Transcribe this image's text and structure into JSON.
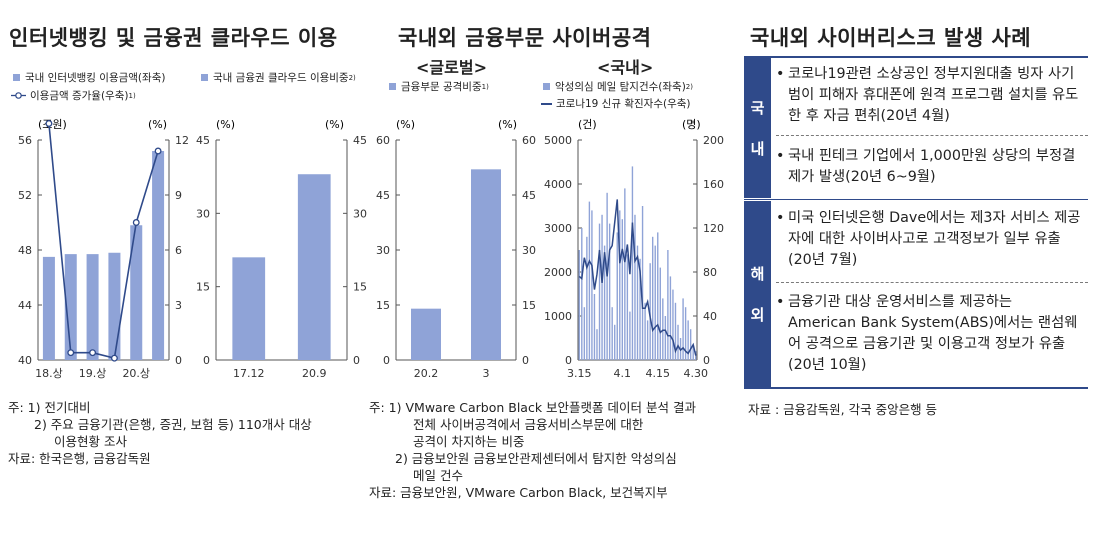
{
  "panels": {
    "left": {
      "title": "인터넷뱅킹 및 금융권 클라우드 이용",
      "legend": [
        "국내 인터넷뱅킹 이용금액(좌축)",
        "이용금액 증가율(우축)",
        "국내 금융권 클라우드 이용비중",
        "2)",
        "1)"
      ],
      "units": {
        "left": "(조원)",
        "right": "(%)"
      },
      "notes": [
        "주:  1) 전기대비",
        "2) 주요 금융기관(은행, 증권, 보험 등) 110개사 대상",
        "이용현황 조사",
        "자료:  한국은행, 금융감독원"
      ]
    },
    "middle": {
      "title": "국내외 금융부문 사이버공격",
      "sub_global": "<글로벌>",
      "sub_domestic": "<국내>",
      "legend": [
        "금융부문 공격비중",
        "악성의심 메일 탐지건수(좌축)",
        "코로나19 신규 확진자수(우축)",
        "1)",
        "2)"
      ],
      "units": {
        "pct": "(%)",
        "count": "(건)",
        "person": "(명)"
      },
      "notes": [
        "주:  1) VMware Carbon Black 보안플랫폼 데이터 분석 결과",
        "전체 사이버공격에서 금융서비스부문에 대한",
        "공격이 차지하는 비중",
        "2) 금융보안원 금융보안관제센터에서 탐지한 악성의심",
        "메일 건수",
        "자료:  금융보안원, VMware Carbon Black, 보건복지부"
      ]
    },
    "right": {
      "title": "국내외 사이버리스크 발생 사례",
      "categories": [
        {
          "label": [
            "국",
            "내"
          ],
          "items": [
            "코로나19관련 소상공인 정부지원대출 빙자 사기범이 피해자 휴대폰에 원격 프로그램 설치를 유도한 후 자금 편취(20년 4월)",
            "국내 핀테크 기업에서 1,000만원 상당의 부정결제가 발생(20년 6~9월)"
          ]
        },
        {
          "label": [
            "해",
            "외"
          ],
          "items": [
            "미국 인터넷은행 Dave에서는 제3자 서비스 제공자에 대한 사이버사고로 고객정보가 일부 유출(20년 7월)",
            "금융기관 대상 운영서비스를 제공하는 American Bank System(ABS)에서는 랜섬웨어 공격으로 금융기관 및 이용고객 정보가 유출(20년 10월)"
          ]
        }
      ],
      "bullet": "•",
      "source": "자료 :  금융감독원, 각국 중앙은행 등"
    }
  },
  "colors": {
    "bar": "#8fa3d7",
    "line": "#2f4a8a",
    "accent": "#2f4a8a"
  },
  "chart_data": [
    {
      "type": "bar",
      "title": "",
      "series": [
        {
          "name": "국내 인터넷뱅킹 이용금액(좌축)",
          "axis": "left",
          "x": [
            0,
            1,
            2,
            3,
            4,
            5
          ],
          "values": [
            47.5,
            47.7,
            47.7,
            47.8,
            49.8,
            55.2
          ]
        },
        {
          "name": "이용금액 증가율(우축)",
          "type": "line",
          "axis": "right",
          "x": [
            0,
            1,
            2,
            3,
            4,
            5
          ],
          "values": [
            12.9,
            0.4,
            0.4,
            0.1,
            7.5,
            11.4
          ]
        }
      ],
      "x_ticks": [
        "18.상",
        "19.상",
        "20.상"
      ],
      "x_tick_index": [
        0,
        2,
        4
      ],
      "y_left": {
        "range": [
          40,
          56
        ],
        "ticks": [
          40,
          44,
          48,
          52,
          56
        ]
      },
      "y_right": {
        "range": [
          0,
          12
        ],
        "ticks": [
          0,
          3,
          6,
          9,
          12
        ]
      },
      "grid": false
    },
    {
      "type": "bar",
      "title": "",
      "series": [
        {
          "name": "국내 금융권 클라우드 이용비중",
          "values": [
            21,
            38
          ]
        }
      ],
      "categories": [
        "17.12",
        "20.9"
      ],
      "y": {
        "range": [
          0,
          45
        ],
        "ticks": [
          0,
          15,
          30,
          45
        ]
      },
      "grid": false
    },
    {
      "type": "bar",
      "title": "",
      "series": [
        {
          "name": "금융부문 공격비중",
          "values": [
            14,
            52
          ]
        }
      ],
      "categories": [
        "20.2",
        "3"
      ],
      "y": {
        "range": [
          0,
          60
        ],
        "ticks": [
          0,
          15,
          30,
          45,
          60
        ]
      },
      "grid": false
    },
    {
      "type": "bar",
      "title": "",
      "x_start": "3.15",
      "x_ticks": [
        "3.15",
        "4.1",
        "4.15",
        "4.30"
      ],
      "x_tick_index": [
        0,
        17,
        31,
        46
      ],
      "series": [
        {
          "name": "악성의심 메일 탐지건수(좌축)",
          "axis": "left",
          "values": [
            2500,
            3000,
            1200,
            2800,
            3600,
            3400,
            1500,
            700,
            3100,
            3300,
            2600,
            3800,
            3100,
            1200,
            800,
            2900,
            3400,
            3200,
            3900,
            2400,
            1100,
            4400,
            3300,
            2600,
            2300,
            3500,
            1300,
            900,
            2200,
            2800,
            2600,
            2900,
            2100,
            1400,
            1000,
            2500,
            1900,
            1600,
            1300,
            800,
            500,
            1400,
            1200,
            900,
            700,
            300,
            200
          ]
        },
        {
          "name": "코로나19 신규 확진자수(우축)",
          "type": "line",
          "axis": "right",
          "values": [
            76,
            74,
            93,
            84,
            90,
            86,
            64,
            78,
            100,
            70,
            98,
            76,
            100,
            104,
            125,
            146,
            88,
            101,
            89,
            105,
            78,
            125,
            90,
            94,
            81,
            47,
            47,
            53,
            39,
            27,
            30,
            32,
            25,
            27,
            27,
            22,
            22,
            18,
            8,
            13,
            9,
            11,
            8,
            6,
            10,
            14,
            4
          ]
        }
      ],
      "y_left": {
        "range": [
          0,
          5000
        ],
        "ticks": [
          0,
          1000,
          2000,
          3000,
          4000,
          5000
        ]
      },
      "y_right": {
        "range": [
          0,
          200
        ],
        "ticks": [
          0,
          40,
          80,
          120,
          160,
          200
        ]
      },
      "grid": false
    }
  ]
}
